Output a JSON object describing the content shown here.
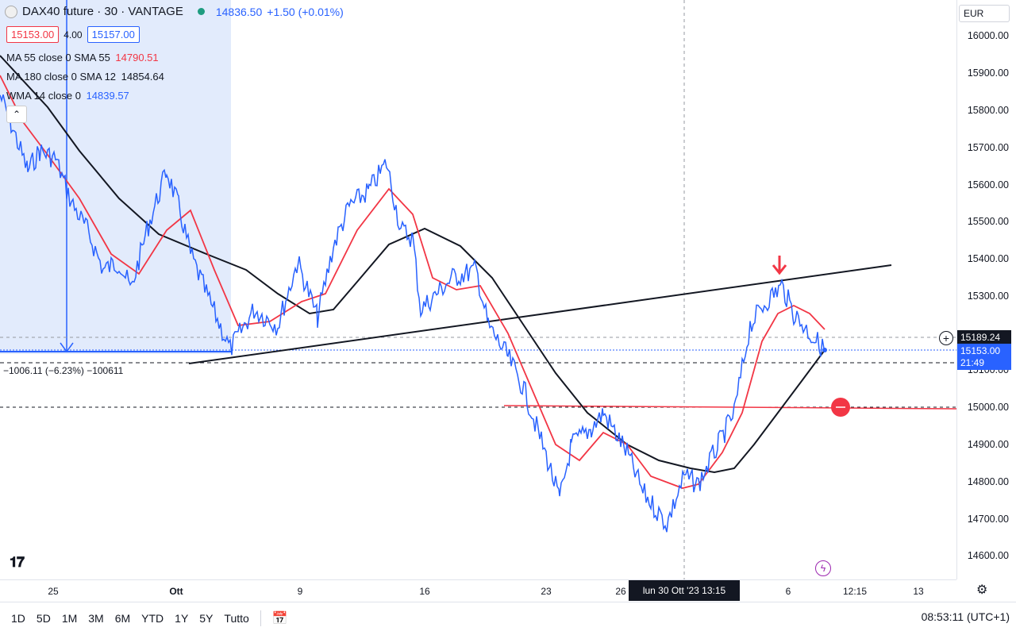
{
  "header": {
    "title": "DAX40 future · 30 · VANTAGE",
    "price": "14836.50",
    "change": "+1.50 (+0.01%)"
  },
  "trade": {
    "bid": "15153.00",
    "spread": "4.00",
    "ask": "15157.00"
  },
  "indicators": [
    {
      "label": "MA  55 close 0 SMA 55",
      "value": "14790.51",
      "color": "#f23645"
    },
    {
      "label": "MA  180 close 0 SMA 12",
      "value": "14854.64",
      "color": "#131722"
    },
    {
      "label": "WMA  14 close 0",
      "value": "14839.57",
      "color": "#2962ff"
    }
  ],
  "range_label": "−1006.11 (−6.23%) −100611",
  "currency": "EUR",
  "y_ticks": [
    "16000.00",
    "15900.00",
    "15800.00",
    "15700.00",
    "15600.00",
    "15500.00",
    "15400.00",
    "15300.00",
    "15200.00",
    "15100.00",
    "15000.00",
    "14900.00",
    "14800.00",
    "14700.00",
    "14600.00"
  ],
  "price_labels": {
    "crosshair": "15189.24",
    "last": "15153.00",
    "countdown": "21:49"
  },
  "x_ticks": [
    "25",
    "Ott",
    "9",
    "16",
    "23",
    "26",
    "6",
    "12:15",
    "13"
  ],
  "x_hover": "lun 30 Ott '23   13:15",
  "timeframes": [
    "1D",
    "5D",
    "1M",
    "3M",
    "6M",
    "YTD",
    "1Y",
    "5Y",
    "Tutto"
  ],
  "clock": "08:53:11 (UTC+1)",
  "colors": {
    "price": "#2962ff",
    "ma55": "#f23645",
    "ma180": "#131722",
    "accent": "#2962ff"
  },
  "icons": {
    "logo": "tradingview-logo",
    "calendar": "calendar-icon",
    "settings": "gear-icon",
    "flash": "flash-icon"
  }
}
